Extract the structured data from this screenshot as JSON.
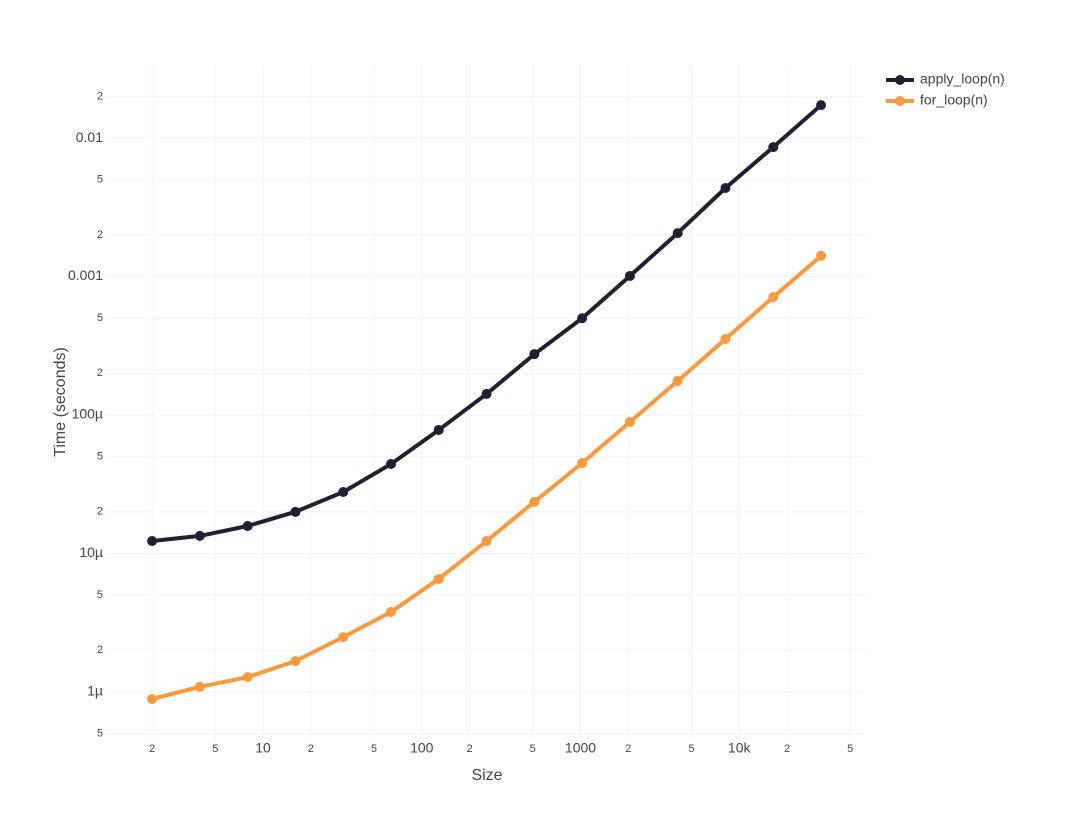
{
  "chart_data": {
    "type": "line",
    "xlabel": "Size",
    "ylabel": "Time (seconds)",
    "x": [
      2,
      4,
      8,
      16,
      32,
      64,
      128,
      256,
      512,
      1024,
      2048,
      4096,
      8192,
      16384,
      32768
    ],
    "series": [
      {
        "name": "apply_loop(n)",
        "color": "#1f2130",
        "values": [
          1.23e-05,
          1.34e-05,
          1.58e-05,
          2e-05,
          2.78e-05,
          4.43e-05,
          7.8e-05,
          0.000142,
          0.000275,
          0.0005,
          0.00101,
          0.00206,
          0.00436,
          0.0086,
          0.0173
        ]
      },
      {
        "name": "for_loop(n)",
        "color": "#f7993c",
        "values": [
          8.9e-07,
          1.09e-06,
          1.28e-06,
          1.67e-06,
          2.49e-06,
          3.78e-06,
          6.55e-06,
          1.23e-05,
          2.36e-05,
          4.5e-05,
          8.9e-05,
          0.000176,
          0.000354,
          0.00071,
          0.00141
        ]
      }
    ],
    "xlog": true,
    "ylog": true,
    "xlim": [
      1.01,
      62000
    ],
    "ylim": [
      4.5e-07,
      0.0337
    ],
    "xticks": [
      2,
      5,
      10,
      {
        "value": 20,
        "label": "2"
      },
      {
        "value": 50,
        "label": "5"
      },
      100,
      {
        "value": 200,
        "label": "2"
      },
      {
        "value": 500,
        "label": "5"
      },
      1000,
      {
        "value": 2000,
        "label": "2"
      },
      {
        "value": 5000,
        "label": "5"
      },
      {
        "value": 10000,
        "label": "10k"
      },
      {
        "value": 20000,
        "label": "2"
      },
      {
        "value": 50000,
        "label": "5"
      }
    ],
    "yticks": [
      {
        "value": 5e-07,
        "label": "5"
      },
      {
        "value": 1e-06,
        "label": "1µ"
      },
      {
        "value": 2e-06,
        "label": "2"
      },
      {
        "value": 5e-06,
        "label": "5"
      },
      {
        "value": 1e-05,
        "label": "10µ"
      },
      {
        "value": 2e-05,
        "label": "2"
      },
      {
        "value": 5e-05,
        "label": "5"
      },
      {
        "value": 0.0001,
        "label": "100µ"
      },
      {
        "value": 0.0002,
        "label": "2"
      },
      {
        "value": 0.0005,
        "label": "5"
      },
      0.001,
      {
        "value": 0.002,
        "label": "2"
      },
      {
        "value": 0.005,
        "label": "5"
      },
      0.01,
      {
        "value": 0.02,
        "label": "2"
      }
    ],
    "grid": true,
    "legend": "top-right"
  }
}
